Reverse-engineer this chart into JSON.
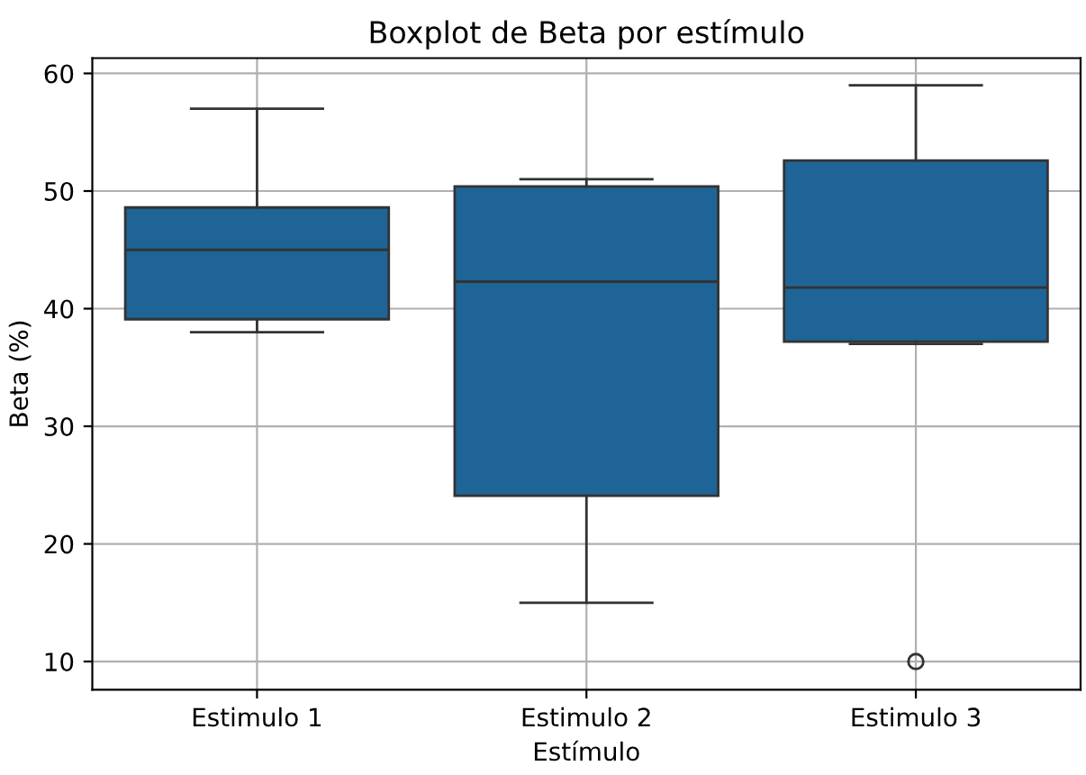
{
  "chart_data": {
    "type": "box",
    "title": "Boxplot de Beta por estímulo",
    "xlabel": "Estímulo",
    "ylabel": "Beta (%)",
    "categories": [
      "Estimulo 1",
      "Estimulo 2",
      "Estimulo 3"
    ],
    "color": "#1f6496",
    "boxes": [
      {
        "low": 38,
        "q1": 39.1,
        "median": 45,
        "q3": 48.6,
        "high": 57
      },
      {
        "low": 15,
        "q1": 24.1,
        "median": 42.3,
        "q3": 50.4,
        "high": 51
      },
      {
        "low": 37,
        "q1": 37.2,
        "median": 41.8,
        "q3": 52.6,
        "high": 59,
        "outliers": [
          10
        ]
      }
    ],
    "ylim": [
      7.6,
      61.3
    ],
    "yticks": [
      10,
      20,
      30,
      40,
      50,
      60
    ],
    "grid": true
  }
}
